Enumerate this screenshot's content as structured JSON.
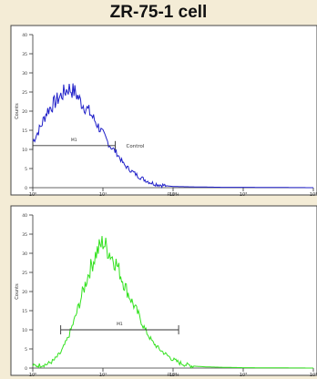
{
  "chart_data": {
    "title": "ZR-75-1 cell",
    "type": "histogram",
    "panels": [
      {
        "ylabel": "Counts",
        "xlabel": "FL1-H",
        "xscale": "log",
        "xlim": [
          1,
          10000
        ],
        "ylim": [
          0,
          40
        ],
        "x_ticks": [
          "10⁰",
          "10¹",
          "10²",
          "10³",
          "10⁴"
        ],
        "y_ticks": [
          "0",
          "5",
          "10",
          "15",
          "20",
          "25",
          "30",
          "35",
          "40"
        ],
        "color": "#1f1fc8",
        "gate_label": "M1",
        "gate_range": [
          1,
          15
        ],
        "annotation": "Control",
        "series": [
          {
            "name": "Control",
            "x": [
              1,
              1.3,
              1.6,
              2,
              2.5,
              3.2,
              4,
              5,
              6.3,
              8,
              10,
              12.6,
              15.8,
              20,
              25,
              32,
              40,
              50,
              63,
              80,
              100,
              200,
              500,
              1000,
              10000
            ],
            "values": [
              12,
              16,
              20,
              22,
              24,
              26,
              25,
              22,
              20,
              17,
              14,
              11,
              9,
              6,
              4.5,
              3,
              2,
              1.2,
              0.8,
              0.5,
              0.3,
              0.2,
              0.1,
              0.1,
              0
            ]
          }
        ]
      },
      {
        "ylabel": "Counts",
        "xlabel": "FL1-H",
        "xscale": "log",
        "xlim": [
          1,
          10000
        ],
        "ylim": [
          0,
          40
        ],
        "x_ticks": [
          "10⁰",
          "10¹",
          "10²",
          "10³",
          "10⁴"
        ],
        "y_ticks": [
          "0",
          "5",
          "10",
          "15",
          "20",
          "25",
          "30",
          "35",
          "40"
        ],
        "color": "#33e11f",
        "gate_label": "M1",
        "gate_range": [
          2.5,
          120
        ],
        "series": [
          {
            "name": "",
            "x": [
              1,
              1.6,
              2,
              2.5,
              3.2,
              4,
              5,
              6.3,
              8,
              10,
              12.6,
              15.8,
              20,
              25,
              32,
              40,
              50,
              63,
              80,
              100,
              126,
              158,
              200,
              300,
              500,
              1000,
              10000
            ],
            "values": [
              0.5,
              1,
              2,
              4,
              8,
              13,
              19,
              25,
              30,
              33,
              30,
              27,
              22,
              18,
              14,
              10,
              7,
              5,
              3.5,
              2.2,
              1.3,
              0.8,
              0.5,
              0.3,
              0.2,
              0.1,
              0
            ]
          }
        ]
      }
    ]
  }
}
